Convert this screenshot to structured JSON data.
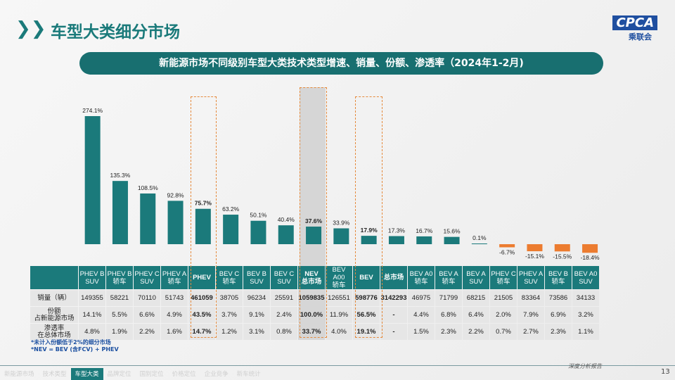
{
  "title": "车型大类细分市场",
  "logo": {
    "text": "CPCA",
    "sub": "乘联会"
  },
  "banner": "新能源市场不同级别车型大类技术类型增速、销量、份额、渗透率（2024年1-2月)",
  "chart_data": {
    "type": "bar",
    "categories": [
      "PHEV B SUV",
      "PHEV B 轿车",
      "PHEV C SUV",
      "PHEV A 轿车",
      "PHEV",
      "BEV C 轿车",
      "BEV B SUV",
      "BEV C SUV",
      "NEV 总市场",
      "BEV A00 轿车",
      "BEV",
      "总市场",
      "BEV A0 轿车",
      "BEV A 轿车",
      "BEV A SUV",
      "PHEV C 轿车",
      "PHEV A SUV",
      "BEV B 轿车",
      "BEV A0 SUV"
    ],
    "values": [
      274.1,
      135.3,
      108.5,
      92.8,
      75.7,
      63.2,
      50.1,
      40.4,
      37.6,
      33.9,
      17.9,
      17.3,
      16.7,
      15.6,
      0.1,
      -6.7,
      -15.1,
      -15.5,
      -18.4
    ],
    "labels": [
      "274.1%",
      "135.3%",
      "108.5%",
      "92.8%",
      "75.7%",
      "63.2%",
      "50.1%",
      "40.4%",
      "37.6%",
      "33.9%",
      "17.9%",
      "17.3%",
      "16.7%",
      "15.6%",
      "0.1%",
      "-6.7%",
      "-15.1%",
      "-15.5%",
      "-18.4%"
    ],
    "highlighted": [
      "PHEV",
      "NEV 总市场",
      "BEV"
    ],
    "colors": {
      "positive": "#1b7a7b",
      "negative": "#ec7c30",
      "highlight_box": "#e58a3c"
    }
  },
  "table": {
    "headers": [
      [
        "PHEV B",
        "SUV"
      ],
      [
        "PHEV B",
        "轿车"
      ],
      [
        "PHEV C",
        "SUV"
      ],
      [
        "PHEV A",
        "轿车"
      ],
      [
        "PHEV",
        ""
      ],
      [
        "BEV C",
        "轿车"
      ],
      [
        "BEV B",
        "SUV"
      ],
      [
        "BEV C",
        "SUV"
      ],
      [
        "NEV",
        "总市场"
      ],
      [
        "BEV A00",
        "轿车"
      ],
      [
        "BEV",
        ""
      ],
      [
        "总市场",
        ""
      ],
      [
        "BEV A0",
        "轿车"
      ],
      [
        "BEV A",
        "轿车"
      ],
      [
        "BEV A",
        "SUV"
      ],
      [
        "PHEV C",
        "轿车"
      ],
      [
        "PHEV A",
        "SUV"
      ],
      [
        "BEV B",
        "轿车"
      ],
      [
        "BEV A0",
        "SUV"
      ]
    ],
    "rows": [
      {
        "label": [
          "销量（辆）"
        ],
        "values": [
          "149355",
          "58221",
          "70110",
          "51743",
          "461059",
          "38705",
          "96234",
          "25591",
          "1059835",
          "126551",
          "598776",
          "3142293",
          "46975",
          "71799",
          "68215",
          "21505",
          "83364",
          "73586",
          "34133"
        ]
      },
      {
        "label": [
          "份额",
          "占新能源市场"
        ],
        "values": [
          "14.1%",
          "5.5%",
          "6.6%",
          "4.9%",
          "43.5%",
          "3.7%",
          "9.1%",
          "2.4%",
          "100.0%",
          "11.9%",
          "56.5%",
          "-",
          "4.4%",
          "6.8%",
          "6.4%",
          "2.0%",
          "7.9%",
          "6.9%",
          "3.2%"
        ]
      },
      {
        "label": [
          "渗透率",
          "在总体市场"
        ],
        "values": [
          "4.8%",
          "1.9%",
          "2.2%",
          "1.6%",
          "14.7%",
          "1.2%",
          "3.1%",
          "0.8%",
          "33.7%",
          "4.0%",
          "19.1%",
          "-",
          "1.5%",
          "2.3%",
          "2.2%",
          "0.7%",
          "2.7%",
          "2.3%",
          "1.1%"
        ]
      }
    ]
  },
  "notes": [
    "*未计入份额低于2%的细分市场",
    "*NEV = BEV (含FCV) + PHEV"
  ],
  "nav": [
    "新能源市场",
    "技术类型",
    "车型大类",
    "品牌定位",
    "国别定位",
    "价格定位",
    "企业竞争",
    "新车统计"
  ],
  "nav_active": "车型大类",
  "footer": "深度分析报告",
  "page_number": "13"
}
